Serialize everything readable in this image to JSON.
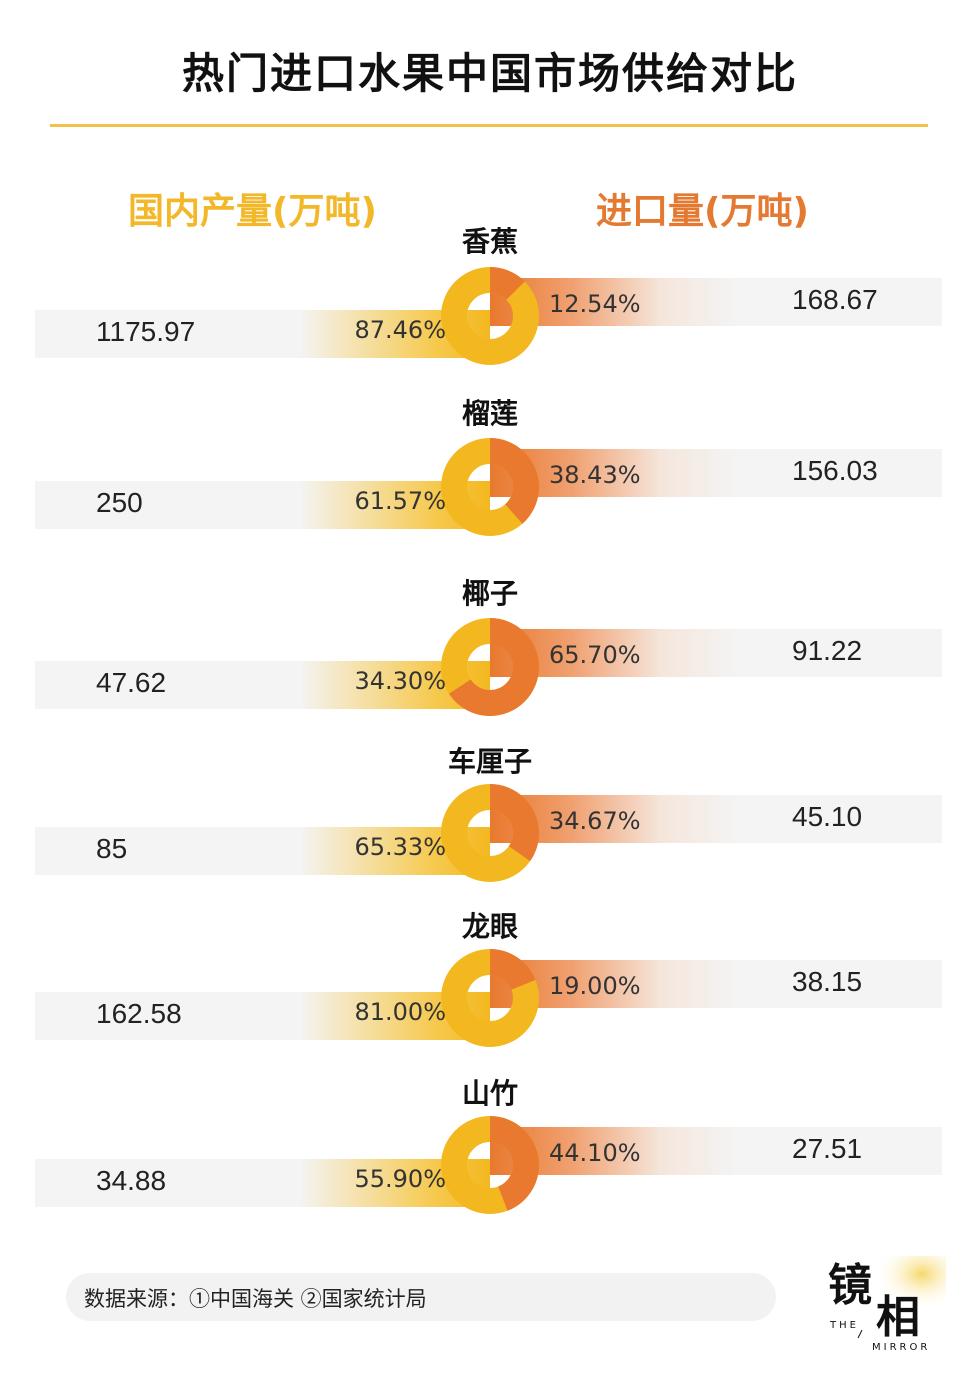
{
  "chart_data": {
    "type": "donut-comparison",
    "title": "热门进口水果中国市场供给对比",
    "left_header": "国内产量(万吨)",
    "right_header": "进口量(万吨)",
    "colors": {
      "domestic": "#F3B81F",
      "import": "#E8792E"
    },
    "rows": [
      {
        "fruit": "香蕉",
        "domestic": "1175.97",
        "domestic_pct": "87.46%",
        "import_pct": "12.54%",
        "import": "168.67",
        "import_share": 12.54
      },
      {
        "fruit": "榴莲",
        "domestic": "250",
        "domestic_pct": "61.57%",
        "import_pct": "38.43%",
        "import": "156.03",
        "import_share": 38.43
      },
      {
        "fruit": "椰子",
        "domestic": "47.62",
        "domestic_pct": "34.30%",
        "import_pct": "65.70%",
        "import": "91.22",
        "import_share": 65.7
      },
      {
        "fruit": "车厘子",
        "domestic": "85",
        "domestic_pct": "65.33%",
        "import_pct": "34.67%",
        "import": "45.10",
        "import_share": 34.67
      },
      {
        "fruit": "龙眼",
        "domestic": "162.58",
        "domestic_pct": "81.00%",
        "import_pct": "19.00%",
        "import": "38.15",
        "import_share": 19.0
      },
      {
        "fruit": "山竹",
        "domestic": "34.88",
        "domestic_pct": "55.90%",
        "import_pct": "44.10%",
        "import": "27.51",
        "import_share": 44.1
      }
    ]
  },
  "footer": {
    "source": "数据来源：①中国海关 ②国家统计局"
  },
  "logo": {
    "text": "镜相",
    "sub1": "THE",
    "sub2": "MIRROR"
  }
}
